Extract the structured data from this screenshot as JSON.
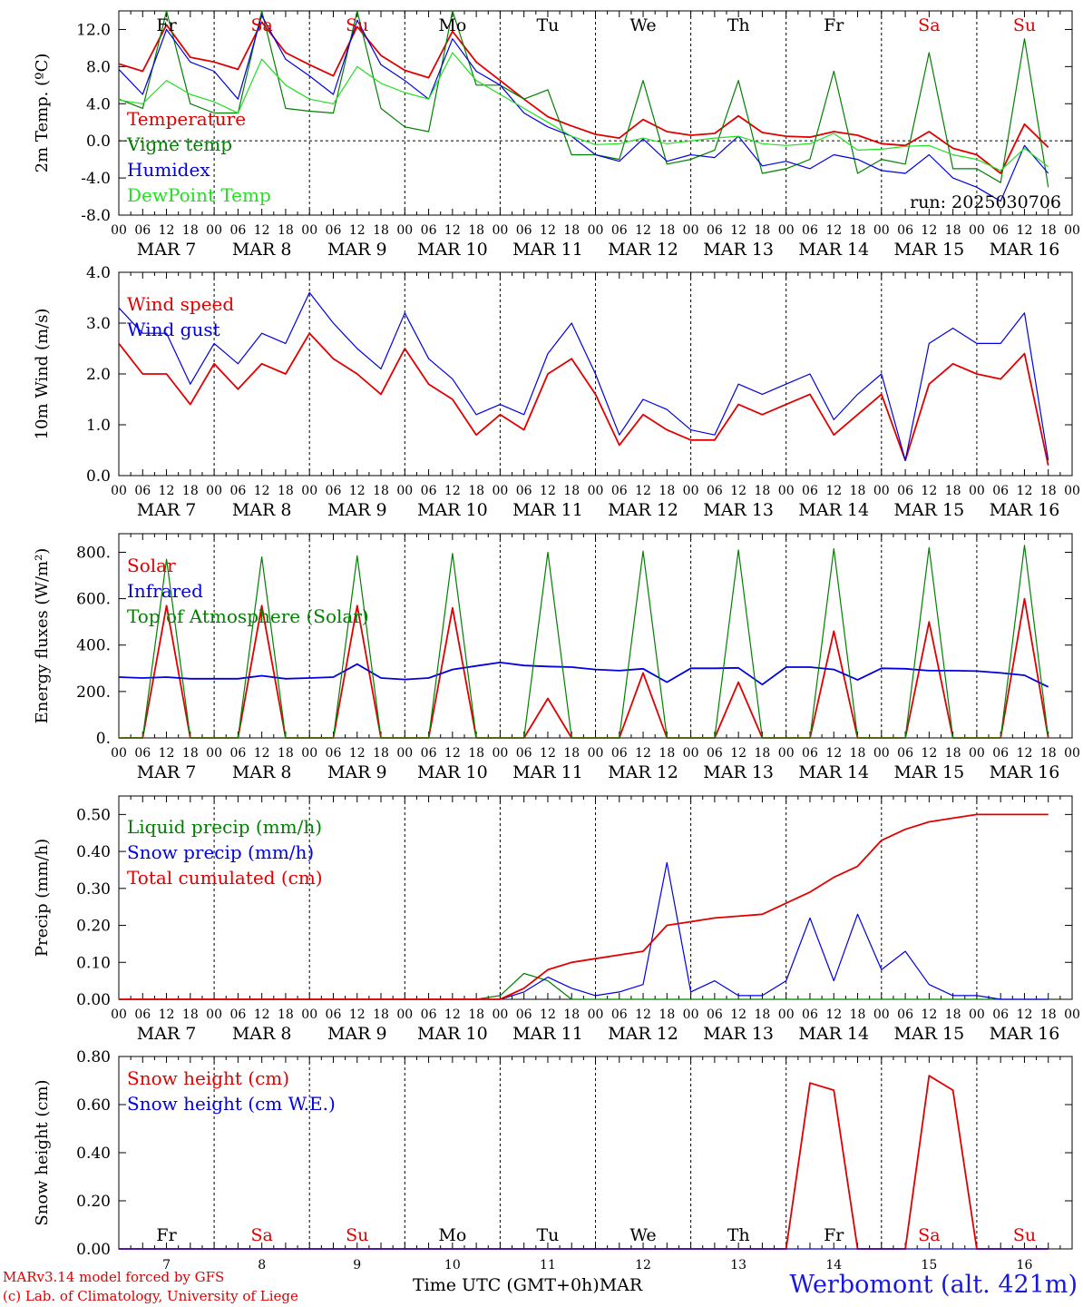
{
  "page": {
    "station_label": "Werbomont (alt. 421m)",
    "model_line": "MARv3.14 model forced by GFS",
    "copyright_line": "(c) Lab. of Climatology, University of Liege",
    "x_axis_title": "Time UTC (GMT+0h)",
    "month_label": "MAR"
  },
  "colors": {
    "red": "#e00000",
    "green": "#008000",
    "blue": "#0000e0",
    "lightgreen": "#20e020",
    "black": "#000000"
  },
  "axis": {
    "hour_labels": [
      "00",
      "06",
      "12",
      "18"
    ],
    "date_labels": [
      "MAR  7",
      "MAR  8",
      "MAR  9",
      "MAR 10",
      "MAR 11",
      "MAR 12",
      "MAR 13",
      "MAR 14",
      "MAR 15",
      "MAR 16"
    ],
    "day_numbers": [
      "7",
      "8",
      "9",
      "10",
      "11",
      "12",
      "13",
      "14",
      "15",
      "16"
    ],
    "weekdays": [
      "Fr",
      "Sa",
      "Su",
      "Mo",
      "Tu",
      "We",
      "Th",
      "Fr",
      "Sa",
      "Su"
    ],
    "weekend_flags": [
      false,
      true,
      true,
      false,
      false,
      false,
      false,
      false,
      true,
      true
    ],
    "days": 10
  },
  "chart_data": [
    {
      "type": "line",
      "ylabel": "2m Temp. (ºC)",
      "ylim": [
        -8,
        14
      ],
      "yticks": [
        "-8.0",
        "-4.0",
        "0.0",
        "4.0",
        "8.0",
        "12.0"
      ],
      "ytick_values": [
        -8,
        -4,
        0,
        4,
        8,
        12
      ],
      "zero_line": true,
      "annotation": "run: 2025030706",
      "x_unit": "hours since MAR 7 00 UTC (step 6h)",
      "series": [
        {
          "name": "Temperature",
          "color": "red",
          "values": [
            8.3,
            7.5,
            12.5,
            9.0,
            8.5,
            7.7,
            12.8,
            9.5,
            8.2,
            7.0,
            12.3,
            9.2,
            7.6,
            6.8,
            11.8,
            8.5,
            6.5,
            4.5,
            2.6,
            1.6,
            0.7,
            0.3,
            2.3,
            1.0,
            0.6,
            0.8,
            2.7,
            0.9,
            0.5,
            0.4,
            1.0,
            0.6,
            -0.3,
            -0.5,
            1.0,
            -0.8,
            -1.5,
            -3.5,
            1.8,
            -0.7
          ]
        },
        {
          "name": "Vigne temp",
          "color": "green",
          "values": [
            4.5,
            3.5,
            14.0,
            4.0,
            3.0,
            3.0,
            14.0,
            3.5,
            3.2,
            3.0,
            14.0,
            3.5,
            1.5,
            1.0,
            14.0,
            6.0,
            6.0,
            4.5,
            5.5,
            -1.5,
            -1.5,
            -2.0,
            6.5,
            -2.5,
            -2.0,
            -1.0,
            6.5,
            -3.5,
            -3.0,
            -2.0,
            7.5,
            -3.5,
            -2.0,
            -2.5,
            9.5,
            -3.0,
            -3.0,
            -4.5,
            11.0,
            -5.0
          ]
        },
        {
          "name": "Humidex",
          "color": "blue",
          "values": [
            7.7,
            5.0,
            12.0,
            8.5,
            7.5,
            4.5,
            13.5,
            8.8,
            7.0,
            5.0,
            13.0,
            8.2,
            6.5,
            4.5,
            11.0,
            7.5,
            6.0,
            3.0,
            1.5,
            0.5,
            -1.5,
            -2.2,
            0.2,
            -2.2,
            -1.5,
            -1.8,
            0.5,
            -2.7,
            -2.2,
            -3.0,
            -1.5,
            -2.0,
            -3.2,
            -3.5,
            -1.5,
            -4.0,
            -5.0,
            -6.5,
            -0.5,
            -3.5
          ]
        },
        {
          "name": "DewPoint Temp",
          "color": "lightgreen",
          "values": [
            4.4,
            4.0,
            6.5,
            5.0,
            4.2,
            3.0,
            8.8,
            6.0,
            4.5,
            4.0,
            8.0,
            6.2,
            5.2,
            4.5,
            9.5,
            6.5,
            5.0,
            3.5,
            2.0,
            0.5,
            -0.4,
            -0.3,
            0.3,
            -0.3,
            0.0,
            0.3,
            0.5,
            -0.3,
            -0.5,
            -0.3,
            0.8,
            -1.0,
            -0.9,
            -0.6,
            -0.5,
            -1.5,
            -2.0,
            -3.2,
            -0.8,
            -2.8
          ]
        }
      ]
    },
    {
      "type": "line",
      "ylabel": "10m Wind (m/s)",
      "ylim": [
        0,
        4
      ],
      "yticks": [
        "0.0",
        "1.0",
        "2.0",
        "3.0",
        "4.0"
      ],
      "ytick_values": [
        0,
        1,
        2,
        3,
        4
      ],
      "series": [
        {
          "name": "Wind speed",
          "color": "red",
          "values": [
            2.6,
            2.0,
            2.0,
            1.4,
            2.2,
            1.7,
            2.2,
            2.0,
            2.8,
            2.3,
            2.0,
            1.6,
            2.5,
            1.8,
            1.5,
            0.8,
            1.2,
            0.9,
            2.0,
            2.3,
            1.6,
            0.6,
            1.2,
            0.9,
            0.7,
            0.7,
            1.4,
            1.2,
            1.4,
            1.6,
            0.8,
            1.2,
            1.6,
            0.3,
            1.8,
            2.2,
            2.0,
            1.9,
            2.4,
            0.2
          ]
        },
        {
          "name": "Wind gust",
          "color": "blue",
          "values": [
            3.3,
            2.8,
            2.8,
            1.8,
            2.6,
            2.2,
            2.8,
            2.6,
            3.6,
            3.0,
            2.5,
            2.1,
            3.2,
            2.3,
            1.9,
            1.2,
            1.4,
            1.2,
            2.4,
            3.0,
            2.0,
            0.8,
            1.5,
            1.3,
            0.9,
            0.8,
            1.8,
            1.6,
            1.8,
            2.0,
            1.1,
            1.6,
            2.0,
            0.3,
            2.6,
            2.9,
            2.6,
            2.6,
            3.2,
            0.3
          ]
        }
      ]
    },
    {
      "type": "line",
      "ylabel": "Energy fluxes (W/m²)",
      "ylim": [
        0,
        880
      ],
      "yticks": [
        "0.",
        "200.",
        "400.",
        "600.",
        "800."
      ],
      "ytick_values": [
        0,
        200,
        400,
        600,
        800
      ],
      "series": [
        {
          "name": "Solar",
          "color": "red",
          "values": [
            0,
            0,
            570,
            0,
            0,
            0,
            570,
            0,
            0,
            0,
            570,
            0,
            0,
            0,
            560,
            0,
            0,
            0,
            170,
            0,
            0,
            0,
            280,
            0,
            0,
            0,
            240,
            0,
            0,
            0,
            460,
            0,
            0,
            0,
            500,
            0,
            0,
            0,
            600,
            0
          ]
        },
        {
          "name": "Infrared",
          "color": "blue",
          "values": [
            262,
            258,
            262,
            255,
            255,
            255,
            268,
            255,
            258,
            262,
            318,
            258,
            252,
            258,
            295,
            310,
            325,
            312,
            308,
            305,
            295,
            290,
            298,
            240,
            300,
            300,
            302,
            230,
            305,
            305,
            295,
            250,
            300,
            298,
            290,
            290,
            288,
            280,
            270,
            220
          ]
        },
        {
          "name": "Top of Atmosphere (Solar)",
          "color": "green",
          "values": [
            0,
            0,
            770,
            0,
            0,
            0,
            780,
            0,
            0,
            0,
            785,
            0,
            0,
            0,
            795,
            0,
            0,
            0,
            800,
            0,
            0,
            0,
            805,
            0,
            0,
            0,
            810,
            0,
            0,
            0,
            815,
            0,
            0,
            0,
            820,
            0,
            0,
            0,
            830,
            0
          ]
        }
      ]
    },
    {
      "type": "line",
      "ylabel": "Precip (mm/h)",
      "ylim": [
        0,
        0.55
      ],
      "yticks": [
        "0.00",
        "0.10",
        "0.20",
        "0.30",
        "0.40",
        "0.50"
      ],
      "ytick_values": [
        0,
        0.1,
        0.2,
        0.3,
        0.4,
        0.5
      ],
      "series": [
        {
          "name": "Liquid precip (mm/h)",
          "color": "green",
          "values": [
            0,
            0,
            0,
            0,
            0,
            0,
            0,
            0,
            0,
            0,
            0,
            0,
            0,
            0,
            0,
            0,
            0.01,
            0.07,
            0.05,
            0.0,
            0,
            0,
            0,
            0,
            0,
            0,
            0,
            0,
            0,
            0,
            0,
            0,
            0,
            0,
            0,
            0,
            0,
            0,
            0,
            0
          ]
        },
        {
          "name": "Snow precip (mm/h)",
          "color": "blue",
          "values": [
            0,
            0,
            0,
            0,
            0,
            0,
            0,
            0,
            0,
            0,
            0,
            0,
            0,
            0,
            0,
            0,
            0,
            0.02,
            0.06,
            0.03,
            0.01,
            0.02,
            0.04,
            0.37,
            0.02,
            0.05,
            0.01,
            0.01,
            0.05,
            0.22,
            0.05,
            0.23,
            0.08,
            0.13,
            0.04,
            0.01,
            0.01,
            0,
            0,
            0
          ]
        },
        {
          "name": "Total cumulated (cm)",
          "color": "red",
          "values": [
            0,
            0,
            0,
            0,
            0,
            0,
            0,
            0,
            0,
            0,
            0,
            0,
            0,
            0,
            0,
            0,
            0.0,
            0.03,
            0.08,
            0.1,
            0.11,
            0.12,
            0.13,
            0.2,
            0.21,
            0.22,
            0.225,
            0.23,
            0.26,
            0.29,
            0.33,
            0.36,
            0.43,
            0.46,
            0.48,
            0.49,
            0.5,
            0.5,
            0.5,
            0.5
          ]
        }
      ]
    },
    {
      "type": "line",
      "ylabel": "Snow height (cm)",
      "ylim": [
        0,
        0.8
      ],
      "yticks": [
        "0.00",
        "0.20",
        "0.40",
        "0.60",
        "0.80"
      ],
      "ytick_values": [
        0,
        0.2,
        0.4,
        0.6,
        0.8
      ],
      "series": [
        {
          "name": "Snow height (cm)",
          "color": "red",
          "values": [
            0,
            0,
            0,
            0,
            0,
            0,
            0,
            0,
            0,
            0,
            0,
            0,
            0,
            0,
            0,
            0,
            0,
            0,
            0,
            0,
            0,
            0,
            0,
            0,
            0,
            0,
            0,
            0,
            0,
            0.69,
            0.66,
            0,
            0,
            0,
            0.72,
            0.66,
            0,
            0,
            0,
            0
          ]
        },
        {
          "name": "Snow height (cm W.E.)",
          "color": "blue",
          "values": [
            0,
            0,
            0,
            0,
            0,
            0,
            0,
            0,
            0,
            0,
            0,
            0,
            0,
            0,
            0,
            0,
            0,
            0,
            0,
            0,
            0,
            0,
            0,
            0,
            0,
            0,
            0,
            0,
            0,
            0,
            0,
            0,
            0,
            0,
            0,
            0,
            0,
            0,
            0,
            0
          ]
        }
      ]
    }
  ]
}
